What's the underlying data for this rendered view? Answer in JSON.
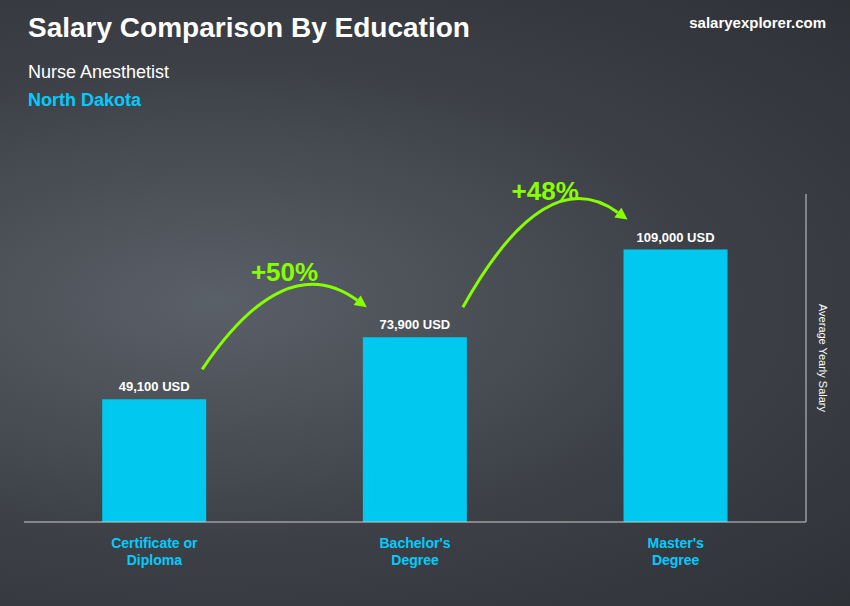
{
  "chart_data": {
    "type": "bar",
    "title": "Salary Comparison By Education",
    "subtitle": "Nurse Anesthetist",
    "location": "North Dakota",
    "source": "salaryexplorer.com",
    "categories": [
      "Certificate or\nDiploma",
      "Bachelor's\nDegree",
      "Master's\nDegree"
    ],
    "values": [
      49100,
      73900,
      109000
    ],
    "value_labels": [
      "49,100 USD",
      "73,900 USD",
      "109,000 USD"
    ],
    "data_labels": true,
    "color": "#00c8ee",
    "ylabel": "Average Yearly Salary",
    "ylim": [
      0,
      131250
    ],
    "tick_labels": "x",
    "grid": false,
    "change_labels": [
      "+50%",
      "+48%"
    ],
    "change_color": "#88ff00",
    "location_color": "#00ccff"
  }
}
